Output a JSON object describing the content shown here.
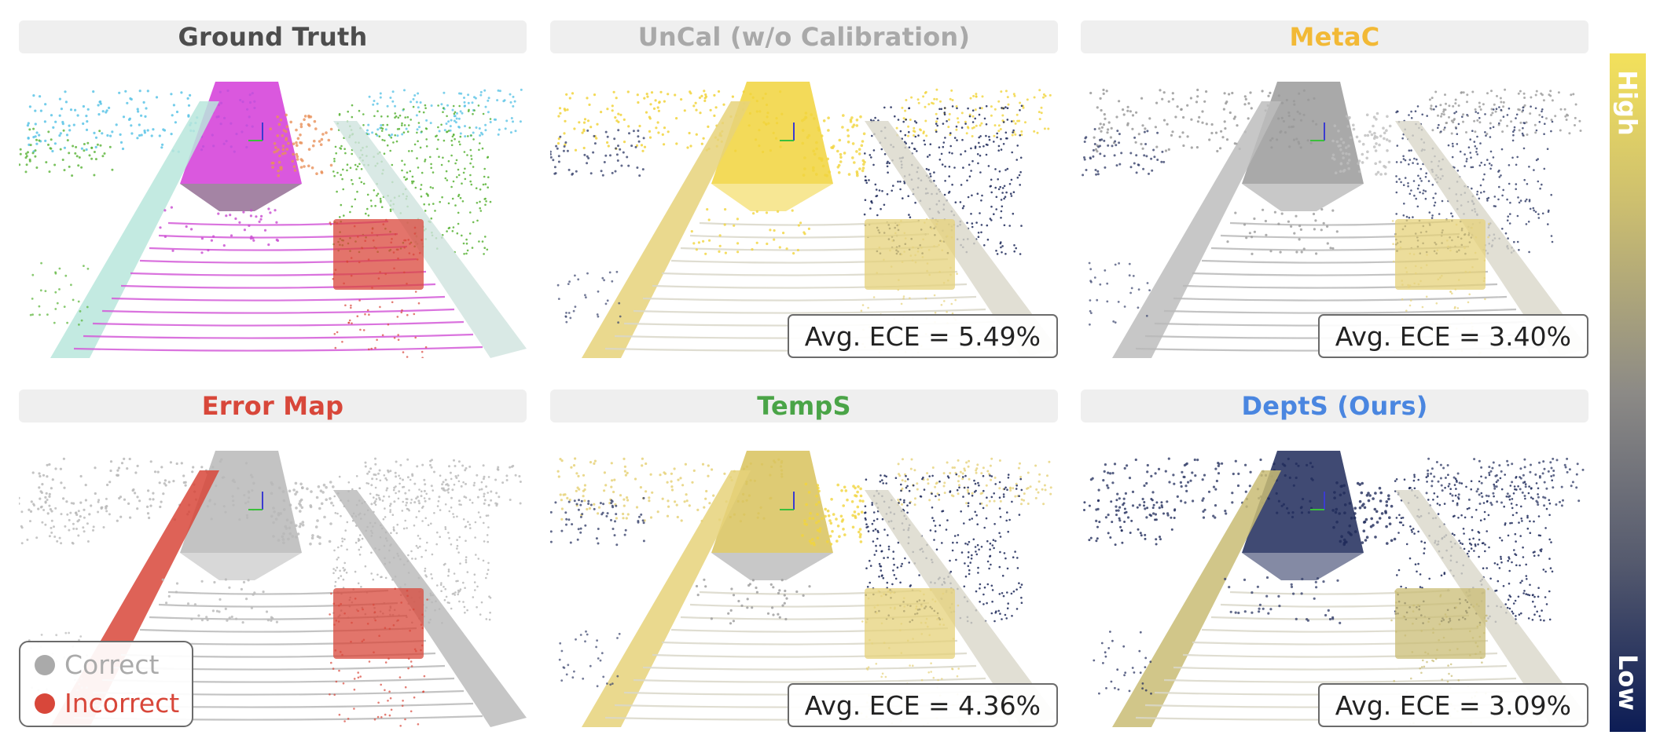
{
  "panels": [
    {
      "id": "ground-truth",
      "title": "Ground Truth",
      "title_color": "#4d4d4d",
      "style": "semantic"
    },
    {
      "id": "uncal",
      "title": "UnCal (w/o Calibration)",
      "title_color": "#a9a9a9",
      "style": "conf-high",
      "ece": "Avg. ECE = 5.49%"
    },
    {
      "id": "metac",
      "title": "MetaC",
      "title_color": "#f2b936",
      "style": "conf-gray",
      "ece": "Avg. ECE = 3.40%"
    },
    {
      "id": "error-map",
      "title": "Error Map",
      "title_color": "#d8473a",
      "style": "error"
    },
    {
      "id": "temps",
      "title": "TempS",
      "title_color": "#4aa447",
      "style": "conf-mid",
      "ece": "Avg. ECE = 4.36%"
    },
    {
      "id": "depts",
      "title": "DeptS (Ours)",
      "title_color": "#4a86e0",
      "style": "conf-low",
      "ece": "Avg. ECE = 3.09%"
    }
  ],
  "legend": {
    "correct_label": "Correct",
    "incorrect_label": "Incorrect",
    "correct_color": "#aaaaaa",
    "incorrect_color": "#d8473a"
  },
  "colorbar": {
    "high_label": "High",
    "low_label": "Low",
    "high_color": "#f3e15b",
    "low_color": "#0c1c55"
  }
}
